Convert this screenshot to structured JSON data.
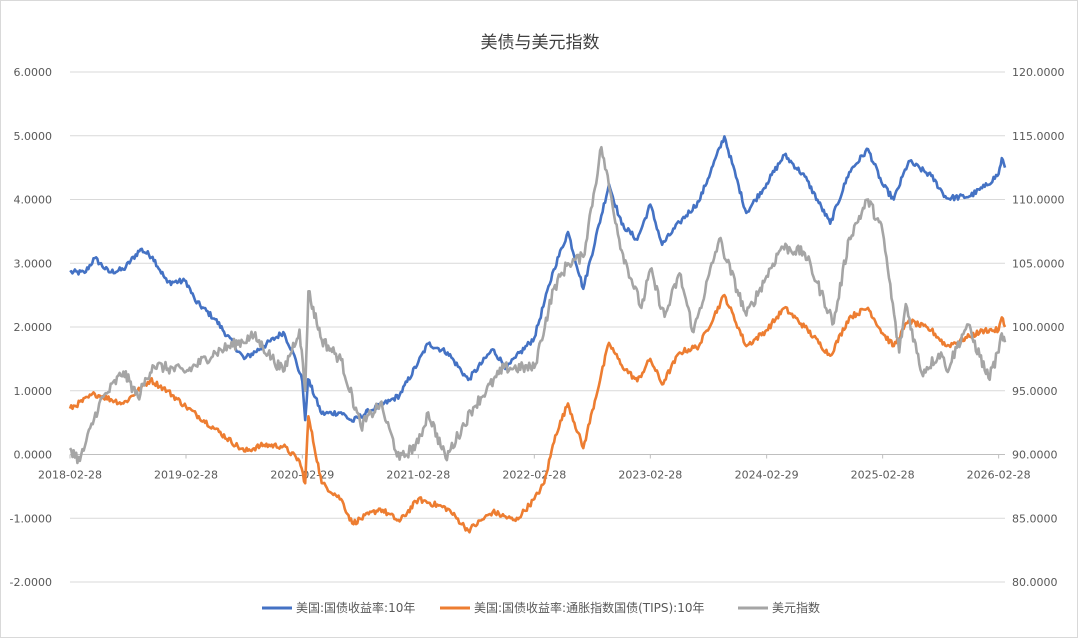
{
  "chart_data": {
    "type": "line",
    "title": "美债与美元指数",
    "x_tick_labels": [
      "2018-02-28",
      "2019-02-28",
      "2020-02-29",
      "2021-02-28",
      "2022-02-28",
      "2023-02-28",
      "2024-02-29",
      "2025-02-28",
      "2026-02-28"
    ],
    "x_range": [
      "2018-02-28",
      "2026-03-20"
    ],
    "y_left": {
      "range": [
        -2,
        6
      ],
      "tick_labels": [
        "-2.0000",
        "-1.0000",
        "0.0000",
        "1.0000",
        "2.0000",
        "3.0000",
        "4.0000",
        "5.0000",
        "6.0000"
      ]
    },
    "y_right": {
      "range": [
        80,
        120
      ],
      "tick_labels": [
        "80.0000",
        "85.0000",
        "90.0000",
        "95.0000",
        "100.0000",
        "105.0000",
        "110.0000",
        "115.0000",
        "120.0000"
      ]
    },
    "grid": true,
    "legend_position": "bottom",
    "series": [
      {
        "name": "美国:国债收益率:10年",
        "axis": "left",
        "color": "#4472c4",
        "points": [
          [
            "2018-02-28",
            2.86
          ],
          [
            "2018-04-15",
            2.85
          ],
          [
            "2018-05-17",
            3.08
          ],
          [
            "2018-06-30",
            2.86
          ],
          [
            "2018-08-15",
            2.9
          ],
          [
            "2018-10-08",
            3.22
          ],
          [
            "2018-11-15",
            3.1
          ],
          [
            "2018-12-31",
            2.7
          ],
          [
            "2019-02-28",
            2.72
          ],
          [
            "2019-03-29",
            2.41
          ],
          [
            "2019-05-31",
            2.12
          ],
          [
            "2019-08-30",
            1.5
          ],
          [
            "2019-10-31",
            1.7
          ],
          [
            "2019-12-31",
            1.92
          ],
          [
            "2020-01-31",
            1.6
          ],
          [
            "2020-02-29",
            1.15
          ],
          [
            "2020-03-09",
            0.54
          ],
          [
            "2020-03-18",
            1.18
          ],
          [
            "2020-04-30",
            0.64
          ],
          [
            "2020-06-30",
            0.66
          ],
          [
            "2020-08-04",
            0.52
          ],
          [
            "2020-09-30",
            0.69
          ],
          [
            "2020-11-30",
            0.84
          ],
          [
            "2020-12-31",
            0.93
          ],
          [
            "2021-02-28",
            1.45
          ],
          [
            "2021-03-31",
            1.74
          ],
          [
            "2021-05-31",
            1.6
          ],
          [
            "2021-08-04",
            1.17
          ],
          [
            "2021-10-20",
            1.65
          ],
          [
            "2021-12-03",
            1.35
          ],
          [
            "2021-12-31",
            1.52
          ],
          [
            "2022-02-28",
            1.83
          ],
          [
            "2022-04-30",
            2.9
          ],
          [
            "2022-06-14",
            3.49
          ],
          [
            "2022-08-01",
            2.6
          ],
          [
            "2022-10-21",
            4.24
          ],
          [
            "2022-11-30",
            3.61
          ],
          [
            "2023-01-18",
            3.37
          ],
          [
            "2023-02-28",
            3.92
          ],
          [
            "2023-04-06",
            3.29
          ],
          [
            "2023-05-31",
            3.64
          ],
          [
            "2023-07-31",
            3.97
          ],
          [
            "2023-10-19",
            4.99
          ],
          [
            "2023-12-27",
            3.79
          ],
          [
            "2024-02-29",
            4.25
          ],
          [
            "2024-04-25",
            4.7
          ],
          [
            "2024-06-28",
            4.36
          ],
          [
            "2024-09-16",
            3.62
          ],
          [
            "2024-11-15",
            4.43
          ],
          [
            "2025-01-13",
            4.79
          ],
          [
            "2025-02-28",
            4.23
          ],
          [
            "2025-04-04",
            4.0
          ],
          [
            "2025-05-21",
            4.6
          ],
          [
            "2025-07-31",
            4.37
          ],
          [
            "2025-09-17",
            4.02
          ],
          [
            "2025-11-28",
            4.05
          ],
          [
            "2026-01-15",
            4.2
          ],
          [
            "2026-02-28",
            4.4
          ],
          [
            "2026-03-10",
            4.65
          ],
          [
            "2026-03-20",
            4.5
          ]
        ]
      },
      {
        "name": "美国:国债收益率:通胀指数国债(TIPS):10年",
        "axis": "left",
        "color": "#ed7d31",
        "points": [
          [
            "2018-02-28",
            0.72
          ],
          [
            "2018-05-17",
            0.95
          ],
          [
            "2018-08-15",
            0.8
          ],
          [
            "2018-11-08",
            1.17
          ],
          [
            "2018-12-31",
            1.0
          ],
          [
            "2019-02-28",
            0.75
          ],
          [
            "2019-05-31",
            0.4
          ],
          [
            "2019-08-30",
            0.05
          ],
          [
            "2019-10-31",
            0.15
          ],
          [
            "2019-12-31",
            0.13
          ],
          [
            "2020-02-20",
            -0.1
          ],
          [
            "2020-03-09",
            -0.45
          ],
          [
            "2020-03-19",
            0.6
          ],
          [
            "2020-04-30",
            -0.45
          ],
          [
            "2020-06-30",
            -0.7
          ],
          [
            "2020-08-04",
            -1.08
          ],
          [
            "2020-10-31",
            -0.85
          ],
          [
            "2020-12-31",
            -1.05
          ],
          [
            "2021-02-28",
            -0.7
          ],
          [
            "2021-05-31",
            -0.85
          ],
          [
            "2021-08-04",
            -1.19
          ],
          [
            "2021-10-20",
            -0.9
          ],
          [
            "2021-12-31",
            -1.04
          ],
          [
            "2022-02-28",
            -0.7
          ],
          [
            "2022-03-31",
            -0.45
          ],
          [
            "2022-05-05",
            0.3
          ],
          [
            "2022-06-14",
            0.8
          ],
          [
            "2022-08-01",
            0.1
          ],
          [
            "2022-10-21",
            1.75
          ],
          [
            "2022-11-30",
            1.4
          ],
          [
            "2023-01-18",
            1.15
          ],
          [
            "2023-02-28",
            1.5
          ],
          [
            "2023-04-06",
            1.1
          ],
          [
            "2023-05-31",
            1.6
          ],
          [
            "2023-07-31",
            1.7
          ],
          [
            "2023-10-19",
            2.5
          ],
          [
            "2023-12-27",
            1.7
          ],
          [
            "2024-02-29",
            1.95
          ],
          [
            "2024-04-25",
            2.3
          ],
          [
            "2024-06-28",
            2.0
          ],
          [
            "2024-09-16",
            1.55
          ],
          [
            "2024-11-15",
            2.15
          ],
          [
            "2025-01-13",
            2.3
          ],
          [
            "2025-02-28",
            1.9
          ],
          [
            "2025-04-04",
            1.7
          ],
          [
            "2025-05-21",
            2.1
          ],
          [
            "2025-07-31",
            1.95
          ],
          [
            "2025-09-17",
            1.7
          ],
          [
            "2025-11-28",
            1.85
          ],
          [
            "2026-01-15",
            1.95
          ],
          [
            "2026-02-28",
            1.95
          ],
          [
            "2026-03-10",
            2.15
          ],
          [
            "2026-03-20",
            2.0
          ]
        ]
      },
      {
        "name": "美元指数",
        "axis": "right",
        "color": "#a5a5a5",
        "points": [
          [
            "2018-02-28",
            90.5
          ],
          [
            "2018-03-31",
            89.5
          ],
          [
            "2018-05-31",
            94.0
          ],
          [
            "2018-08-15",
            96.5
          ],
          [
            "2018-09-30",
            94.5
          ],
          [
            "2018-11-15",
            97.0
          ],
          [
            "2019-02-28",
            96.5
          ],
          [
            "2019-05-31",
            98.0
          ],
          [
            "2019-09-30",
            99.3
          ],
          [
            "2019-12-31",
            96.5
          ],
          [
            "2020-02-20",
            99.8
          ],
          [
            "2020-03-09",
            95.0
          ],
          [
            "2020-03-19",
            102.8
          ],
          [
            "2020-04-30",
            99.0
          ],
          [
            "2020-06-30",
            97.4
          ],
          [
            "2020-08-31",
            92.2
          ],
          [
            "2020-10-31",
            94.0
          ],
          [
            "2020-12-31",
            89.6
          ],
          [
            "2021-02-28",
            90.9
          ],
          [
            "2021-03-31",
            93.3
          ],
          [
            "2021-05-25",
            89.7
          ],
          [
            "2021-08-20",
            93.7
          ],
          [
            "2021-11-24",
            96.8
          ],
          [
            "2022-02-28",
            96.8
          ],
          [
            "2022-04-30",
            103.0
          ],
          [
            "2022-06-14",
            105.0
          ],
          [
            "2022-08-01",
            105.5
          ],
          [
            "2022-09-27",
            114.1
          ],
          [
            "2022-11-30",
            106.0
          ],
          [
            "2023-01-31",
            101.5
          ],
          [
            "2023-02-28",
            104.5
          ],
          [
            "2023-04-14",
            100.8
          ],
          [
            "2023-05-31",
            104.2
          ],
          [
            "2023-07-14",
            99.6
          ],
          [
            "2023-10-03",
            106.9
          ],
          [
            "2023-12-27",
            100.9
          ],
          [
            "2024-02-29",
            104.0
          ],
          [
            "2024-04-16",
            106.3
          ],
          [
            "2024-06-28",
            105.8
          ],
          [
            "2024-09-27",
            100.3
          ],
          [
            "2024-11-15",
            107.0
          ],
          [
            "2025-01-13",
            110.0
          ],
          [
            "2025-02-28",
            107.5
          ],
          [
            "2025-04-21",
            98.0
          ],
          [
            "2025-05-12",
            101.8
          ],
          [
            "2025-07-01",
            96.4
          ],
          [
            "2025-08-31",
            98.0
          ],
          [
            "2025-09-17",
            96.6
          ],
          [
            "2025-11-21",
            100.2
          ],
          [
            "2026-01-27",
            96.0
          ],
          [
            "2026-02-28",
            98.0
          ],
          [
            "2026-03-10",
            99.5
          ],
          [
            "2026-03-20",
            98.8
          ]
        ]
      }
    ]
  }
}
